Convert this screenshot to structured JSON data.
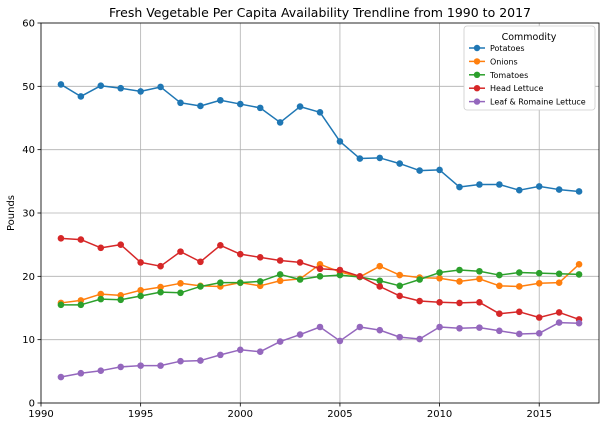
{
  "chart_data": {
    "type": "line",
    "title": "Fresh Vegetable Per Capita Availability Trendline from 1990 to 2017",
    "xlabel": "",
    "ylabel": "Pounds",
    "xlim": [
      1990,
      2018
    ],
    "ylim": [
      0,
      60
    ],
    "xticks": [
      1990,
      1995,
      2000,
      2005,
      2010,
      2015
    ],
    "yticks": [
      0,
      10,
      20,
      30,
      40,
      50,
      60
    ],
    "grid": true,
    "legend": {
      "title": "Commodity",
      "position": "top-right"
    },
    "x": [
      1991,
      1992,
      1993,
      1994,
      1995,
      1996,
      1997,
      1998,
      1999,
      2000,
      2001,
      2002,
      2003,
      2004,
      2005,
      2006,
      2007,
      2008,
      2009,
      2010,
      2011,
      2012,
      2013,
      2014,
      2015,
      2016,
      2017
    ],
    "series": [
      {
        "name": "Potatoes",
        "color": "#1f77b4",
        "values": [
          50.3,
          48.4,
          50.1,
          49.7,
          49.2,
          49.9,
          47.4,
          46.9,
          47.8,
          47.2,
          46.6,
          44.3,
          46.8,
          45.9,
          41.3,
          38.6,
          38.7,
          37.8,
          36.7,
          36.8,
          34.1,
          34.5,
          34.5,
          33.6,
          34.2,
          33.7,
          33.4
        ]
      },
      {
        "name": "Onions",
        "color": "#ff7f0e",
        "values": [
          15.8,
          16.2,
          17.2,
          17.0,
          17.8,
          18.3,
          18.9,
          18.5,
          18.4,
          19.0,
          18.5,
          19.3,
          19.6,
          21.9,
          20.7,
          19.9,
          21.6,
          20.2,
          19.8,
          19.7,
          19.2,
          19.6,
          18.5,
          18.4,
          18.9,
          19.0,
          21.9
        ]
      },
      {
        "name": "Tomatoes",
        "color": "#2ca02c",
        "values": [
          15.5,
          15.5,
          16.4,
          16.3,
          16.9,
          17.5,
          17.4,
          18.4,
          19.0,
          19.0,
          19.2,
          20.3,
          19.5,
          20.0,
          20.2,
          19.9,
          19.3,
          18.5,
          19.5,
          20.6,
          21.0,
          20.8,
          20.2,
          20.6,
          20.5,
          20.4,
          20.3
        ]
      },
      {
        "name": "Head Lettuce",
        "color": "#d62728",
        "values": [
          26.0,
          25.8,
          24.5,
          25.0,
          22.2,
          21.6,
          23.9,
          22.3,
          24.9,
          23.5,
          23.0,
          22.5,
          22.2,
          21.2,
          21.0,
          20.0,
          18.4,
          16.9,
          16.1,
          15.9,
          15.8,
          15.9,
          14.1,
          14.4,
          13.5,
          14.3,
          13.2
        ]
      },
      {
        "name": "Leaf & Romaine Lettuce",
        "color": "#9467bd",
        "values": [
          4.1,
          4.7,
          5.1,
          5.7,
          5.9,
          5.9,
          6.6,
          6.7,
          7.6,
          8.4,
          8.1,
          9.7,
          10.8,
          12.0,
          9.8,
          12.0,
          11.5,
          10.4,
          10.1,
          12.0,
          11.8,
          11.9,
          11.4,
          10.9,
          11.0,
          12.7,
          12.6
        ]
      }
    ]
  }
}
